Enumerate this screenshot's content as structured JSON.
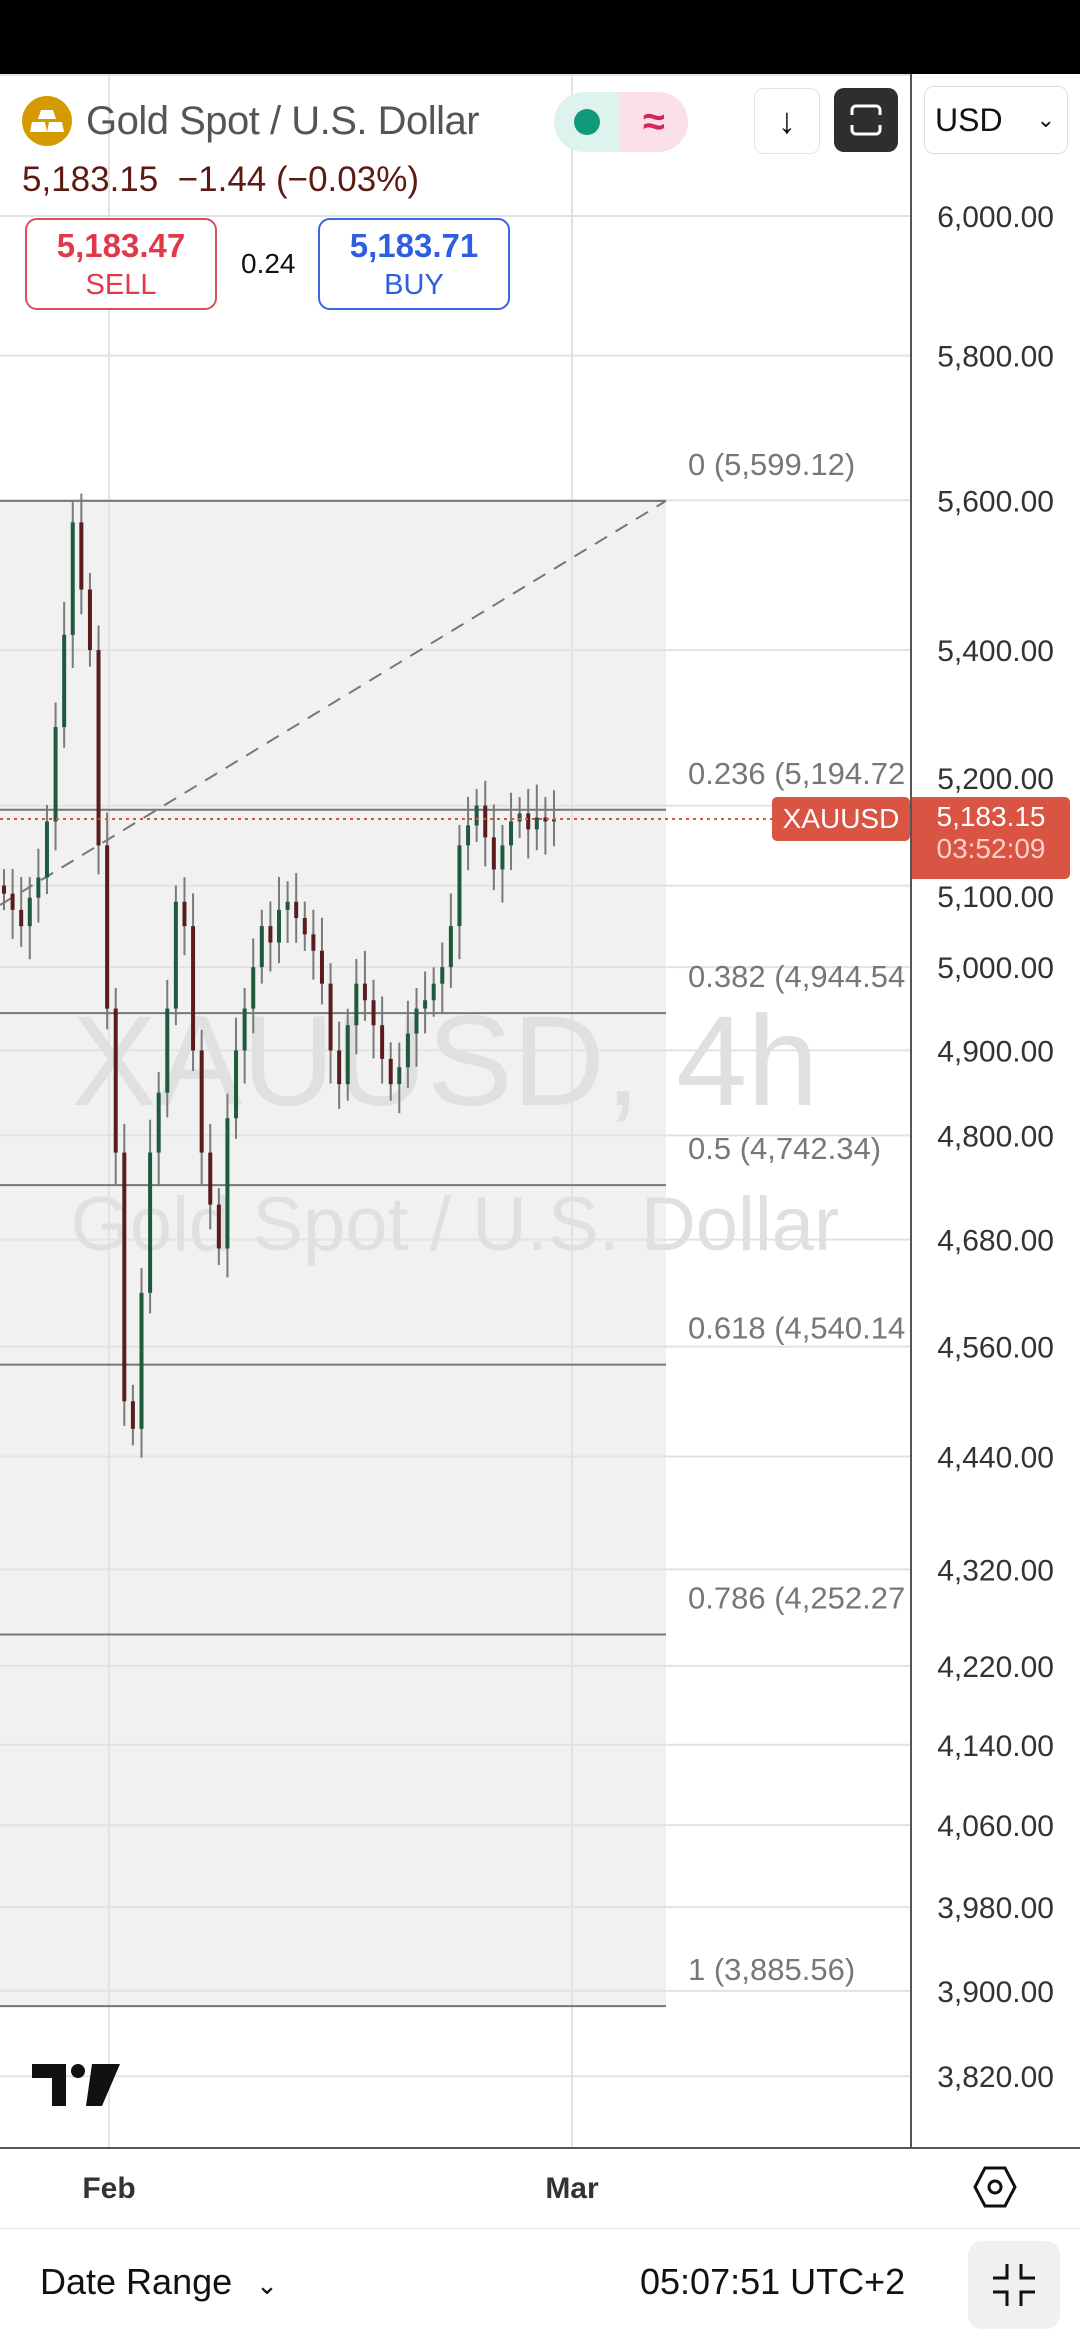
{
  "header": {
    "symbol_name": "Gold Spot / U.S. Dollar",
    "last_price": "5,183.15",
    "change": "−1.44",
    "change_pct": "(−0.03%)",
    "market_status_icon": "market-open-dot",
    "delayed_icon": "approx-icon",
    "currency": "USD"
  },
  "trade": {
    "sell_price": "5,183.47",
    "sell_label": "SELL",
    "spread": "0.24",
    "buy_price": "5,183.71",
    "buy_label": "BUY"
  },
  "colors": {
    "sell": "#e03a4a",
    "buy": "#2f5fe0",
    "up": "#1f5a3c",
    "down": "#5a1c1c",
    "price_badge": "#d95443",
    "logo": "#d49a00"
  },
  "watermark": {
    "line1": "XAUUSD, 4h",
    "line2": "Gold Spot / U.S. Dollar"
  },
  "price_badge": {
    "symbol": "XAUUSD",
    "price": "5,183.15",
    "countdown": "03:52:09"
  },
  "chart_data": {
    "type": "candlestick",
    "symbol": "XAUUSD",
    "interval": "4h",
    "y_scale": "log",
    "ylim": [
      3780,
      6120
    ],
    "y_ticks": [
      "6,000.00",
      "5,800.00",
      "5,600.00",
      "5,400.00",
      "5,200.00",
      "5,100.00",
      "5,000.00",
      "4,900.00",
      "4,800.00",
      "4,680.00",
      "4,560.00",
      "4,440.00",
      "4,320.00",
      "4,220.00",
      "4,140.00",
      "4,060.00",
      "3,980.00",
      "3,900.00",
      "3,820.00"
    ],
    "x_ticks": [
      "Feb",
      "Mar"
    ],
    "grid": true,
    "current_price": 5183.15,
    "closes": [
      5090,
      5070,
      5050,
      5085,
      5110,
      5180,
      5300,
      5420,
      5570,
      5480,
      5400,
      5150,
      4950,
      4780,
      4500,
      4470,
      4620,
      4780,
      4850,
      4950,
      5080,
      5050,
      4900,
      4780,
      4720,
      4670,
      4820,
      4900,
      4950,
      5000,
      5050,
      5030,
      5070,
      5080,
      5060,
      5040,
      5020,
      4980,
      4900,
      4860,
      4930,
      4980,
      4960,
      4930,
      4890,
      4860,
      4880,
      4920,
      4950,
      4960,
      4980,
      5000,
      5050,
      5150,
      5175,
      5200,
      5160,
      5120,
      5150,
      5180,
      5190,
      5170,
      5185,
      5180,
      5183.15
    ],
    "fibonacci": {
      "levels": [
        {
          "ratio": "0",
          "price": 5599.12,
          "label": "0 (5,599.12)"
        },
        {
          "ratio": "0.236",
          "price": 5194.72,
          "label": "0.236 (5,194.72"
        },
        {
          "ratio": "0.382",
          "price": 4944.54,
          "label": "0.382 (4,944.54"
        },
        {
          "ratio": "0.5",
          "price": 4742.34,
          "label": "0.5 (4,742.34)"
        },
        {
          "ratio": "0.618",
          "price": 4540.14,
          "label": "0.618 (4,540.14"
        },
        {
          "ratio": "0.786",
          "price": 4252.27,
          "label": "0.786 (4,252.27"
        },
        {
          "ratio": "1",
          "price": 3885.56,
          "label": "1 (3,885.56)"
        }
      ]
    }
  },
  "bottom": {
    "date_range": "Date Range",
    "clock": "05:07:51 UTC+2"
  }
}
